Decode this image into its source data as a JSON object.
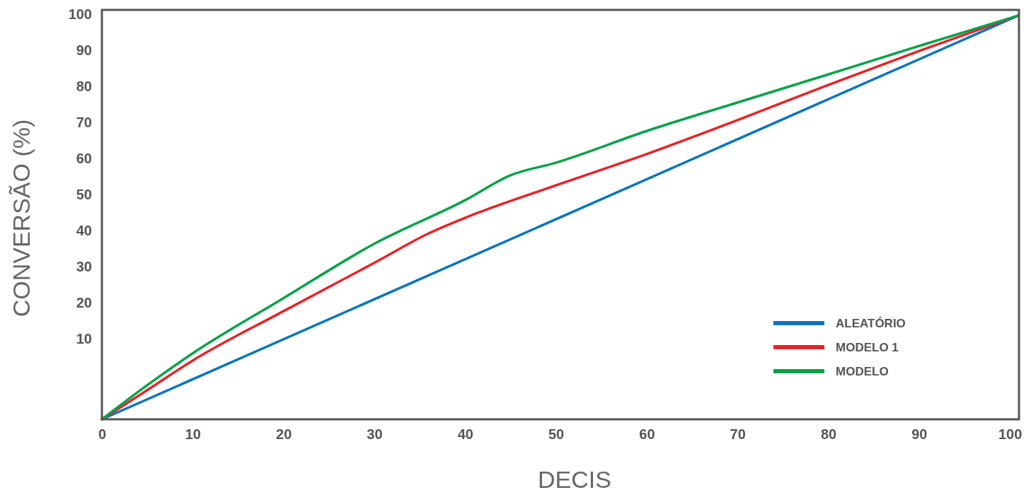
{
  "chart_data": {
    "type": "line",
    "xlabel": "DECIS",
    "ylabel": "CONVERSÃO (%)",
    "xlim": [
      0,
      101
    ],
    "ylim": [
      -12.4,
      101.2
    ],
    "xticks": [
      0,
      10,
      20,
      30,
      40,
      50,
      60,
      70,
      80,
      90,
      100
    ],
    "yticks": [
      10,
      20,
      30,
      40,
      50,
      60,
      70,
      80,
      90,
      100
    ],
    "grid": false,
    "legend": "bottom right",
    "marker": "none",
    "line_style": "solid",
    "series": [
      {
        "name": "ALEATÓRIO",
        "color": "#0a75bc",
        "x": [
          0,
          100.9
        ],
        "values": [
          -12.4,
          99.6
        ]
      },
      {
        "name": "MODELO 1",
        "color": "#e5232a",
        "x": [
          0,
          5,
          10,
          20,
          30,
          36,
          40,
          50,
          60,
          70,
          80,
          90,
          100.9
        ],
        "values": [
          -12.4,
          -4.3,
          3.9,
          17.6,
          31,
          39.2,
          43.5,
          52.5,
          61.2,
          70.6,
          80.4,
          89.8,
          99.6
        ]
      },
      {
        "name": "MODELO",
        "color": "#0aa14b",
        "x": [
          0,
          5,
          10,
          20,
          30,
          40,
          45,
          50,
          60,
          70,
          80,
          90,
          100.9
        ],
        "values": [
          -12.4,
          -2.9,
          5.9,
          21.2,
          36.3,
          48.4,
          55.3,
          58.8,
          67.6,
          75.5,
          83.3,
          91.2,
          99.6
        ]
      }
    ]
  }
}
